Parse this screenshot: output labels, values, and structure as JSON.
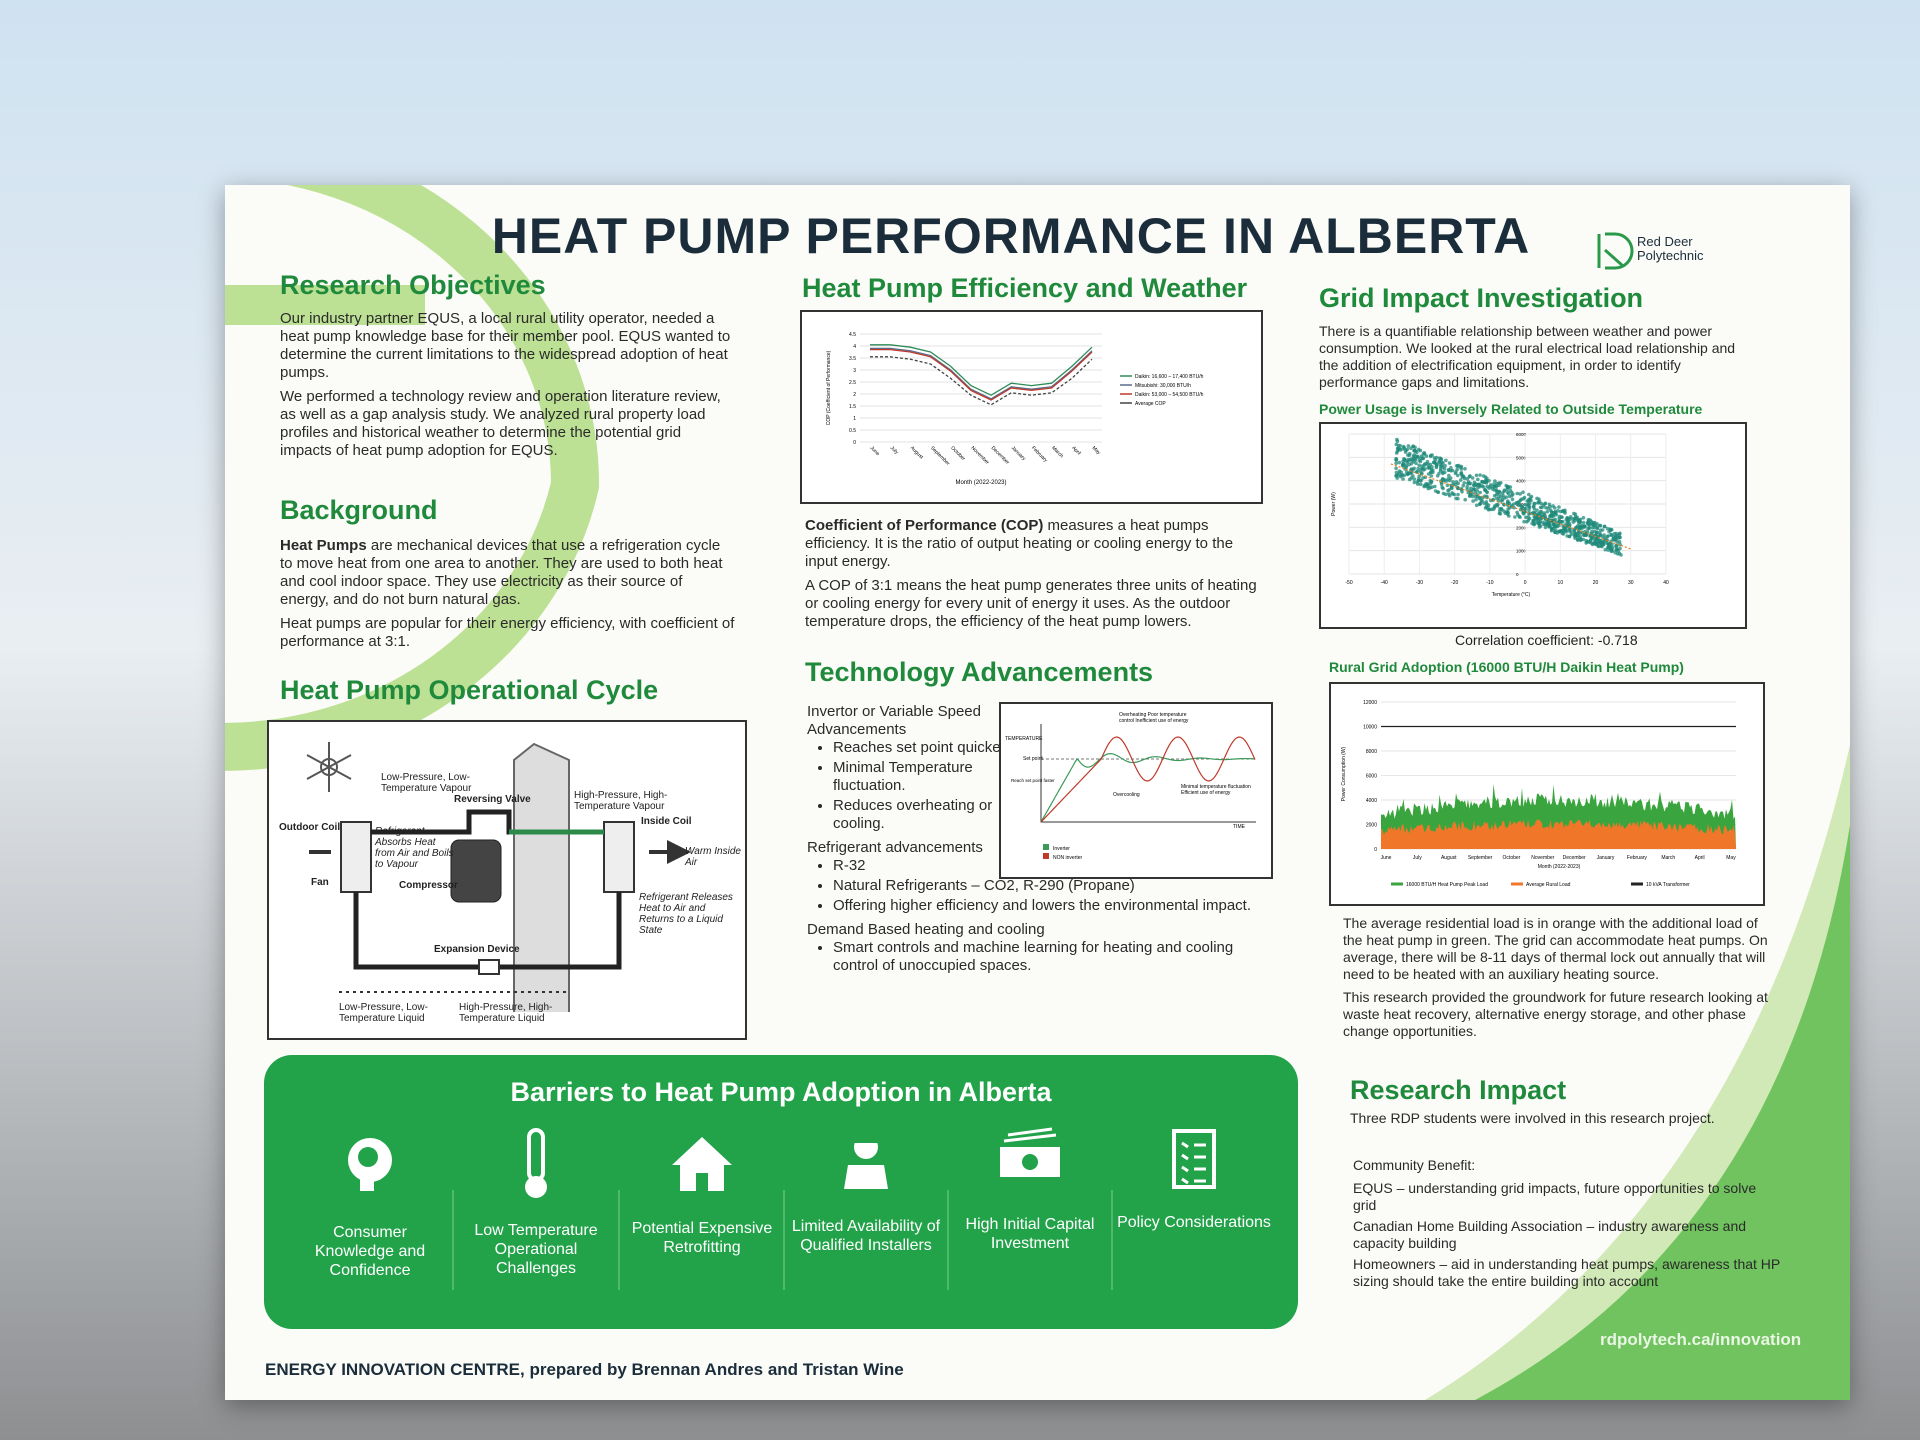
{
  "header": {
    "title": "HEAT PUMP PERFORMANCE IN ALBERTA",
    "logo": "Red Deer Polytechnic"
  },
  "research_objectives": {
    "heading": "Research Objectives",
    "paragraphs": [
      "Our industry partner EQUS, a local rural utility operator, needed a heat pump knowledge base for their member pool. EQUS wanted to determine the current limitations to the widespread adoption of heat pumps.",
      "We performed a technology review and operation literature review, as well as a gap analysis study. We analyzed rural property load profiles and historical weather to determine the potential grid impacts of heat pump adoption for EQUS."
    ]
  },
  "background": {
    "heading": "Background",
    "lead": "Heat Pumps",
    "text": " are mechanical devices that use a refrigeration cycle to move heat from one area to another. They are used to both heat and cool indoor space. They use electricity as their source of energy, and do not burn natural gas.",
    "paragraph": "Heat pumps are popular for their energy efficiency, with coefficient of performance at 3:1."
  },
  "operational_cycle": {
    "heading": "Heat Pump Operational Cycle",
    "labels": {
      "low_vapour": "Low-Pressure, Low-Temperature Vapour",
      "reversing_valve": "Reversing Valve",
      "high_vapour": "High-Pressure, High-Temperature Vapour",
      "outdoor_coil": "Outdoor Coil",
      "inside_coil": "Inside Coil",
      "absorbs": "Refrigerant Absorbs Heat from Air and Boils to Vapour",
      "warm_air": "Warm Inside Air",
      "fan": "Fan",
      "compressor": "Compressor",
      "releases": "Refrigerant Releases Heat to Air and Returns to a Liquid State",
      "expansion": "Expansion Device",
      "low_liquid": "Low-Pressure, Low-Temperature Liquid",
      "high_liquid": "High-Pressure, High-Temperature Liquid"
    }
  },
  "efficiency": {
    "heading": "Heat Pump Efficiency and Weather",
    "chart": {
      "y_label": "COP (Coefficient of Performance)",
      "x_label": "Month (2022-2023)",
      "y_ticks": [
        "0",
        "0.5",
        "1",
        "1.5",
        "2",
        "2.5",
        "3",
        "3.5",
        "4",
        "4.5"
      ],
      "months": [
        "June",
        "July",
        "August",
        "September",
        "October",
        "November",
        "December",
        "January",
        "February",
        "March",
        "April",
        "May"
      ],
      "legend": [
        "Daikin: 16,600 – 17,400 BTU/h",
        "Mitsubishi: 30,000 BTU/h",
        "Daikin: 53,000 – 54,500 BTU/h",
        "Average COP"
      ]
    },
    "lead": "Coefficient of Performance (COP)",
    "text": " measures a heat pumps efficiency. It is the ratio of output heating or cooling energy to the input energy.",
    "paragraph": "A COP of 3:1 means the heat pump generates three units of heating or cooling energy for every unit of energy it uses. As the outdoor temperature drops, the efficiency of the heat pump lowers."
  },
  "technology": {
    "heading": "Technology Advancements",
    "items": [
      {
        "title": "Invertor or Variable Speed Advancements",
        "bullets": [
          "Reaches set point quicker.",
          "Minimal Temperature fluctuation.",
          "Reduces overheating or cooling."
        ]
      },
      {
        "title": "Refrigerant advancements",
        "bullets": [
          "R-32",
          "Natural Refrigerants – CO2, R-290 (Propane)",
          "Offering higher efficiency and lowers the environmental impact."
        ]
      },
      {
        "title": "Demand Based heating and cooling",
        "bullets": [
          "Smart controls and machine learning for heating and cooling control of unoccupied spaces."
        ]
      }
    ],
    "chart": {
      "y_label": "TEMPERATURE",
      "x_label": "TIME",
      "set_point": "Set point",
      "faster": "Reach set point faster",
      "overheating": "Overheating Poor temperature control Inefficient use of energy",
      "overcooling": "Overcooling",
      "minimal": "Minimal temperature fluctuation Efficient use of energy",
      "legend": [
        "Inverter",
        "NON inverter"
      ]
    }
  },
  "grid": {
    "heading": "Grid Impact Investigation",
    "paragraph": "There is a quantifiable relationship between weather and power consumption. We looked at the rural electrical load relationship and the addition of electrification equipment, in order to identify performance gaps and limitations.",
    "scatter": {
      "title": "Power Usage is Inversely Related to Outside Temperature",
      "y_label": "Power (W)",
      "x_label": "Temperature (°C)",
      "y_ticks": [
        "6000",
        "5000",
        "4000",
        "3000",
        "2000",
        "1000",
        "0"
      ],
      "x_ticks": [
        "-50",
        "-40",
        "-30",
        "-20",
        "-10",
        "0",
        "10",
        "20",
        "30",
        "40"
      ],
      "correlation": "Correlation coefficient: -0.718"
    },
    "rural": {
      "title": "Rural Grid Adoption (16000 BTU/H Daikin Heat Pump)",
      "y_label": "Power Consumption (W)",
      "x_label": "Month (2022-2023)",
      "y_ticks": [
        "0",
        "2000",
        "4000",
        "6000",
        "8000",
        "10000",
        "12000"
      ],
      "months": [
        "June",
        "July",
        "August",
        "September",
        "October",
        "November",
        "December",
        "January",
        "February",
        "March",
        "April",
        "May"
      ],
      "legend": [
        "16000 BTU/H Heat Pump Peak Load",
        "Average Rural Load",
        "10 kVA Transformer"
      ]
    },
    "paragraphs": [
      "The average residential load is in orange with the additional load of the heat pump in green. The grid can accommodate heat pumps. On average, there will be 8-11 days of thermal lock out annually that will need to be heated with an auxiliary heating source.",
      "This research provided the groundwork for future research looking at waste heat recovery, alternative energy storage, and other phase change opportunities."
    ]
  },
  "research_impact": {
    "heading": "Research Impact",
    "paragraph": "Three RDP students were involved in this research project.",
    "community_heading": "Community Benefit:",
    "community": [
      "EQUS – understanding grid impacts, future opportunities to solve grid",
      "Canadian Home Building Association – industry awareness and capacity building",
      "Homeowners – aid in understanding heat pumps, awareness that HP sizing should take the entire building into account"
    ]
  },
  "barriers": {
    "heading": "Barriers to Heat Pump Adoption in Alberta",
    "items": [
      "Consumer Knowledge and Confidence",
      "Low Temperature Operational Challenges",
      "Potential Expensive Retrofitting",
      "Limited Availability of Qualified Installers",
      "High Initial Capital Investment",
      "Policy Considerations"
    ]
  },
  "footer": {
    "credit": "ENERGY INNOVATION CENTRE, prepared by Brennan Andres and Tristan Wine",
    "url": "rdpolytech.ca/innovation"
  }
}
